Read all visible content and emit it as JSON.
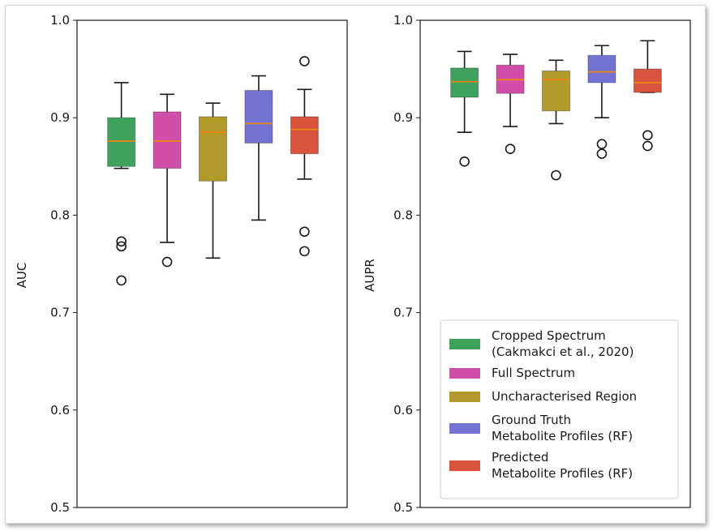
{
  "chart_data": [
    {
      "type": "box",
      "ylabel": "AUC",
      "ylim": [
        0.5,
        1.0
      ],
      "yticks": [
        "0.5",
        "0.6",
        "0.7",
        "0.8",
        "0.9",
        "1.0"
      ],
      "grid": false,
      "boxes": [
        {
          "series": "Cropped Spectrum (Cakmakci et al., 2020)",
          "whisker_low": 0.848,
          "q1": 0.85,
          "median": 0.876,
          "q3": 0.9,
          "whisker_high": 0.936,
          "outliers": [
            0.733,
            0.768,
            0.773
          ]
        },
        {
          "series": "Full Spectrum",
          "whisker_low": 0.772,
          "q1": 0.848,
          "median": 0.876,
          "q3": 0.906,
          "whisker_high": 0.924,
          "outliers": [
            0.752
          ]
        },
        {
          "series": "Uncharacterised Region",
          "whisker_low": 0.756,
          "q1": 0.835,
          "median": 0.885,
          "q3": 0.901,
          "whisker_high": 0.915,
          "outliers": []
        },
        {
          "series": "Ground Truth Metabolite Profiles (RF)",
          "whisker_low": 0.795,
          "q1": 0.874,
          "median": 0.894,
          "q3": 0.928,
          "whisker_high": 0.943,
          "outliers": []
        },
        {
          "series": "Predicted Metabolite Profiles (RF)",
          "whisker_low": 0.837,
          "q1": 0.863,
          "median": 0.888,
          "q3": 0.901,
          "whisker_high": 0.929,
          "outliers": [
            0.958,
            0.783,
            0.763
          ]
        }
      ]
    },
    {
      "type": "box",
      "ylabel": "AUPR",
      "ylim": [
        0.5,
        1.0
      ],
      "yticks": [
        "0.5",
        "0.6",
        "0.7",
        "0.8",
        "0.9",
        "1.0"
      ],
      "grid": false,
      "legend": "lower-right",
      "boxes": [
        {
          "series": "Cropped Spectrum (Cakmakci et al., 2020)",
          "whisker_low": 0.885,
          "q1": 0.921,
          "median": 0.937,
          "q3": 0.951,
          "whisker_high": 0.968,
          "outliers": [
            0.855
          ]
        },
        {
          "series": "Full Spectrum",
          "whisker_low": 0.891,
          "q1": 0.925,
          "median": 0.939,
          "q3": 0.954,
          "whisker_high": 0.965,
          "outliers": [
            0.868
          ]
        },
        {
          "series": "Uncharacterised Region",
          "whisker_low": 0.894,
          "q1": 0.907,
          "median": 0.939,
          "q3": 0.948,
          "whisker_high": 0.959,
          "outliers": [
            0.841
          ]
        },
        {
          "series": "Ground Truth Metabolite Profiles (RF)",
          "whisker_low": 0.9,
          "q1": 0.936,
          "median": 0.947,
          "q3": 0.964,
          "whisker_high": 0.974,
          "outliers": [
            0.873,
            0.863
          ]
        },
        {
          "series": "Predicted Metabolite Profiles (RF)",
          "whisker_low": 0.926,
          "q1": 0.926,
          "median": 0.936,
          "q3": 0.95,
          "whisker_high": 0.979,
          "outliers": [
            0.882,
            0.871
          ]
        }
      ]
    }
  ],
  "legend": {
    "placement": "lower-right",
    "entries": [
      {
        "lines": [
          "Cropped Spectrum",
          "(Cakmakci et al., 2020)"
        ],
        "color": "#3ea25d"
      },
      {
        "lines": [
          "Full Spectrum"
        ],
        "color": "#cf4fa8"
      },
      {
        "lines": [
          "Uncharacterised Region"
        ],
        "color": "#b29a2a"
      },
      {
        "lines": [
          "Ground Truth",
          "Metabolite Profiles (RF)"
        ],
        "color": "#7473d4"
      },
      {
        "lines": [
          "Predicted",
          "Metabolite Profiles (RF)"
        ],
        "color": "#d9533d"
      }
    ]
  },
  "colors": {
    "median": "#e8831a",
    "axis": "#1a1a1a"
  }
}
